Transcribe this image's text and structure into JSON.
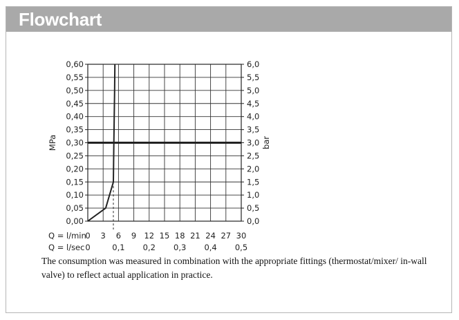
{
  "header": {
    "title": "Flowchart"
  },
  "note": "The consumption was measured in combination with the appropriate fittings (thermostat/mixer/ in-wall valve) to reflect actual application in practice.",
  "chart_data": {
    "type": "line",
    "left_axis": {
      "label": "MPa",
      "ticks": [
        "0,00",
        "0,05",
        "0,10",
        "0,15",
        "0,20",
        "0,25",
        "0,30",
        "0,35",
        "0,40",
        "0,45",
        "0,50",
        "0,55",
        "0,60"
      ],
      "range": [
        0,
        0.6
      ]
    },
    "right_axis": {
      "label": "bar",
      "ticks": [
        "0,0",
        "0,5",
        "1,0",
        "1,5",
        "2,0",
        "2,5",
        "3,0",
        "3,5",
        "4,0",
        "4,5",
        "5,0",
        "5,5",
        "6,0"
      ],
      "range": [
        0,
        6
      ]
    },
    "x_axis_lmin": {
      "label": "Q = l/min",
      "ticks": [
        "0",
        "3",
        "6",
        "9",
        "12",
        "15",
        "18",
        "21",
        "24",
        "27",
        "30"
      ],
      "range": [
        0,
        30
      ]
    },
    "x_axis_lsec": {
      "label": "Q = l/sec",
      "ticks": [
        "0",
        "0,1",
        "0,2",
        "0,3",
        "0,4",
        "0,5"
      ],
      "range": [
        0,
        0.5
      ]
    },
    "series": [
      {
        "x_lmin": [
          0,
          3.5,
          5.0,
          5.1,
          5.25,
          5.3
        ],
        "y_mpa": [
          0,
          0.05,
          0.15,
          0.3,
          0.5,
          0.6
        ]
      }
    ],
    "reference_line": {
      "y_mpa": 0.3
    },
    "dashed_marker": {
      "x_lmin": 5.0,
      "y_mpa": 0.15
    },
    "grid": true
  }
}
